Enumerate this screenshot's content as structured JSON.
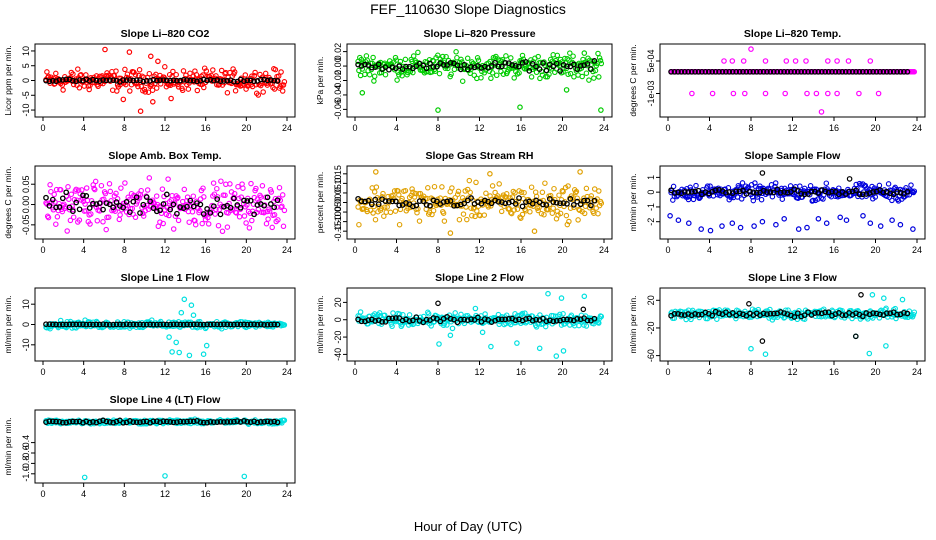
{
  "figure": {
    "title": "FEF_110630  Slope Diagnostics",
    "xlabel": "Hour of Day (UTC)"
  },
  "chart_data": [
    {
      "type": "scatter",
      "title": "Slope Li–820 CO2",
      "ylabel": "Licor ppm per min.",
      "xlim": [
        0,
        24
      ],
      "ylim": [
        -11,
        11
      ],
      "xticks": [
        "0",
        "4",
        "8",
        "12",
        "16",
        "20",
        "24"
      ],
      "yticks": [
        "-10",
        "-5",
        "0",
        "5",
        "10"
      ],
      "ytick_values": [
        -10,
        -5,
        0,
        5,
        10
      ],
      "series": [
        {
          "color": "#ff0000",
          "spread": 3.0,
          "extra_points": [
            [
              6.1,
              10.5
            ],
            [
              8.5,
              9.6
            ],
            [
              10.6,
              8.2
            ],
            [
              11.3,
              6.5
            ],
            [
              9.6,
              -10.4
            ],
            [
              10.8,
              -7.2
            ],
            [
              12.6,
              -6.1
            ],
            [
              7.9,
              -6.4
            ]
          ]
        },
        {
          "color": "#000000",
          "spread": 0.6,
          "extra_points": []
        }
      ]
    },
    {
      "type": "scatter",
      "title": "Slope Li–820 Pressure",
      "ylabel": "kPa per min.",
      "xlim": [
        0,
        24
      ],
      "ylim": [
        -0.065,
        0.025
      ],
      "xticks": [
        "0",
        "4",
        "8",
        "12",
        "16",
        "20",
        "24"
      ],
      "yticks": [
        "-0.06",
        "-0.04",
        "-0.02",
        "0.00",
        "0.02"
      ],
      "ytick_values": [
        -0.06,
        -0.04,
        -0.02,
        0.0,
        0.02
      ],
      "series": [
        {
          "color": "#00cc00",
          "spread": 0.014,
          "extra_points": [
            [
              8.0,
              -0.061
            ],
            [
              15.9,
              -0.057
            ],
            [
              23.7,
              -0.061
            ],
            [
              0.7,
              -0.037
            ],
            [
              20.4,
              -0.033
            ],
            [
              22.1,
              0.018
            ]
          ]
        },
        {
          "color": "#000000",
          "spread": 0.008,
          "extra_points": []
        }
      ]
    },
    {
      "type": "scatter",
      "title": "Slope Li–820 Temp.",
      "ylabel": "degrees C per min.",
      "xlim": [
        0,
        24
      ],
      "ylim": [
        -0.0019,
        0.0011
      ],
      "xticks": [
        "0",
        "4",
        "8",
        "12",
        "16",
        "20",
        "24"
      ],
      "yticks": [
        "-1e-03",
        "5e-04"
      ],
      "ytick_values": [
        -0.001,
        0.0005
      ],
      "series": [
        {
          "color": "#ff00ff",
          "spread": 0.0,
          "extra_points": [
            [
              8.0,
              0.00105
            ],
            [
              14.8,
              -0.00185
            ],
            [
              5.4,
              0.0005
            ],
            [
              6.2,
              0.0005
            ],
            [
              7.3,
              0.0005
            ],
            [
              9.4,
              0.0005
            ],
            [
              11.4,
              0.0005
            ],
            [
              12.3,
              0.0005
            ],
            [
              13.3,
              0.0005
            ],
            [
              15.4,
              0.0005
            ],
            [
              16.3,
              0.0005
            ],
            [
              17.4,
              0.0005
            ],
            [
              19.5,
              0.0005
            ],
            [
              2.3,
              -0.001
            ],
            [
              4.3,
              -0.001
            ],
            [
              6.3,
              -0.001
            ],
            [
              7.4,
              -0.001
            ],
            [
              9.4,
              -0.001
            ],
            [
              11.3,
              -0.001
            ],
            [
              13.4,
              -0.001
            ],
            [
              14.3,
              -0.001
            ],
            [
              15.4,
              -0.001
            ],
            [
              16.3,
              -0.001
            ],
            [
              18.4,
              -0.001
            ],
            [
              20.3,
              -0.001
            ]
          ]
        },
        {
          "color": "#000000",
          "spread": 0.0,
          "extra_points": []
        }
      ]
    },
    {
      "type": "scatter",
      "title": "Slope Amb. Box Temp.",
      "ylabel": "degrees C per min.",
      "xlim": [
        0,
        24
      ],
      "ylim": [
        -0.075,
        0.085
      ],
      "xticks": [
        "0",
        "4",
        "8",
        "12",
        "16",
        "20",
        "24"
      ],
      "yticks": [
        "-0.05",
        "0.00",
        "0.05"
      ],
      "ytick_values": [
        -0.05,
        0.0,
        0.05
      ],
      "series": [
        {
          "color": "#ff00ff",
          "spread": 0.045,
          "extra_points": []
        },
        {
          "color": "#000000",
          "spread": 0.035,
          "extra_points": []
        }
      ]
    },
    {
      "type": "scatter",
      "title": "Slope Gas Stream RH",
      "ylabel": "percent per min.",
      "xlim": [
        0,
        24
      ],
      "ylim": [
        -0.17,
        0.17
      ],
      "xticks": [
        "0",
        "4",
        "8",
        "12",
        "16",
        "20",
        "24"
      ],
      "yticks": [
        "-0.15",
        "-0.10",
        "-0.05",
        "0.00",
        "0.05",
        "0.10",
        "0.15"
      ],
      "ytick_values": [
        -0.15,
        -0.1,
        -0.05,
        0.0,
        0.05,
        0.1,
        0.15
      ],
      "series": [
        {
          "color": "#e0a000",
          "spread": 0.08,
          "extra_points": [
            [
              2.0,
              0.16
            ],
            [
              9.2,
              -0.16
            ],
            [
              21.7,
              0.16
            ],
            [
              13.0,
              0.15
            ],
            [
              17.3,
              -0.15
            ]
          ]
        },
        {
          "color": "#000000",
          "spread": 0.03,
          "extra_points": []
        }
      ]
    },
    {
      "type": "scatter",
      "title": "Slope Sample Flow",
      "ylabel": "ml/min per min.",
      "xlim": [
        0,
        24
      ],
      "ylim": [
        -2.9,
        1.5
      ],
      "xticks": [
        "0",
        "4",
        "8",
        "12",
        "16",
        "20",
        "24"
      ],
      "yticks": [
        "-2",
        "-1",
        "0",
        "1"
      ],
      "ytick_values": [
        -2,
        -1,
        0,
        1
      ],
      "series": [
        {
          "color": "#0000dd",
          "spread": 0.45,
          "extra_points": [
            [
              0.2,
              -1.6
            ],
            [
              1.0,
              -1.9
            ],
            [
              2.0,
              -2.1
            ],
            [
              3.2,
              -2.5
            ],
            [
              4.1,
              -2.6
            ],
            [
              5.2,
              -2.3
            ],
            [
              6.2,
              -2.1
            ],
            [
              7.0,
              -2.4
            ],
            [
              8.3,
              -2.3
            ],
            [
              9.1,
              -2.0
            ],
            [
              10.4,
              -2.2
            ],
            [
              11.2,
              -1.8
            ],
            [
              12.6,
              -2.5
            ],
            [
              13.4,
              -2.4
            ],
            [
              14.5,
              -1.8
            ],
            [
              15.3,
              -2.1
            ],
            [
              16.6,
              -1.7
            ],
            [
              17.2,
              -1.9
            ],
            [
              18.8,
              -1.6
            ],
            [
              19.5,
              -2.1
            ],
            [
              20.5,
              -2.3
            ],
            [
              21.6,
              -1.9
            ],
            [
              22.4,
              -2.2
            ],
            [
              23.6,
              -2.5
            ]
          ]
        },
        {
          "color": "#000000",
          "spread": 0.25,
          "extra_points": [
            [
              9.1,
              1.3
            ],
            [
              17.5,
              0.9
            ]
          ]
        }
      ]
    },
    {
      "type": "scatter",
      "title": "Slope Line 1 Flow",
      "ylabel": "ml/min per min.",
      "xlim": [
        0,
        24
      ],
      "ylim": [
        -16,
        16
      ],
      "xticks": [
        "0",
        "4",
        "8",
        "12",
        "16",
        "20",
        "24"
      ],
      "yticks": [
        "-10",
        "0",
        "10"
      ],
      "ytick_values": [
        -10,
        0,
        10
      ],
      "series": [
        {
          "color": "#00e0e0",
          "spread": 1.5,
          "extra_points": [
            [
              13.9,
              12.4
            ],
            [
              14.6,
              9.5
            ],
            [
              13.6,
              5.8
            ],
            [
              14.8,
              4.6
            ],
            [
              12.4,
              -6.2
            ],
            [
              13.1,
              -8.8
            ],
            [
              12.7,
              -13.5
            ],
            [
              13.4,
              -13.8
            ],
            [
              15.8,
              -14.6
            ],
            [
              16.1,
              -10.4
            ],
            [
              14.4,
              -15.2
            ]
          ]
        },
        {
          "color": "#000000",
          "spread": 0.2,
          "extra_points": []
        }
      ]
    },
    {
      "type": "scatter",
      "title": "Slope Line 2 Flow",
      "ylabel": "ml/min per min.",
      "xlim": [
        0,
        24
      ],
      "ylim": [
        -43,
        32
      ],
      "xticks": [
        "0",
        "4",
        "8",
        "12",
        "16",
        "20",
        "24"
      ],
      "yticks": [
        "-40",
        "-20",
        "0",
        "20"
      ],
      "ytick_values": [
        -40,
        -20,
        0,
        20
      ],
      "series": [
        {
          "color": "#00e0e0",
          "spread": 6.0,
          "extra_points": [
            [
              8.1,
              -28.0
            ],
            [
              9.2,
              -18.0
            ],
            [
              12.3,
              -14.5
            ],
            [
              13.1,
              -31.0
            ],
            [
              15.6,
              -27.0
            ],
            [
              17.8,
              -33.0
            ],
            [
              19.4,
              -42.0
            ],
            [
              20.1,
              -36.0
            ],
            [
              18.6,
              30.0
            ],
            [
              19.9,
              25.0
            ],
            [
              22.1,
              27.0
            ],
            [
              9.4,
              -10.0
            ],
            [
              11.6,
              13.0
            ]
          ]
        },
        {
          "color": "#000000",
          "spread": 4.0,
          "extra_points": [
            [
              8.0,
              19.0
            ],
            [
              22.0,
              12.0
            ]
          ]
        }
      ]
    },
    {
      "type": "scatter",
      "title": "Slope Line 3 Flow",
      "ylabel": "ml/min per min.",
      "xlim": [
        0,
        24
      ],
      "ylim": [
        -62,
        32
      ],
      "xticks": [
        "0",
        "4",
        "8",
        "12",
        "16",
        "20",
        "24"
      ],
      "yticks": [
        "-60",
        "-20",
        "20"
      ],
      "ytick_values": [
        -60,
        -20,
        20
      ],
      "series": [
        {
          "color": "#00e0e0",
          "spread": 6.0,
          "extra_points": [
            [
              8.0,
              -50.0
            ],
            [
              9.4,
              -58.0
            ],
            [
              18.1,
              -32.0
            ],
            [
              19.4,
              -57.0
            ],
            [
              21.0,
              -46.0
            ],
            [
              19.7,
              28.0
            ],
            [
              20.8,
              23.0
            ],
            [
              22.6,
              21.0
            ]
          ]
        },
        {
          "color": "#000000",
          "spread": 5.5,
          "extra_points": [
            [
              7.8,
              15.0
            ],
            [
              18.6,
              28.0
            ],
            [
              9.1,
              -39.0
            ],
            [
              18.1,
              -32.0
            ]
          ]
        }
      ]
    },
    {
      "type": "scatter",
      "title": "Slope Line 4 (LT) Flow",
      "ylabel": "ml/min per min.",
      "xlim": [
        0,
        24
      ],
      "ylim": [
        -1.1,
        0.15
      ],
      "xticks": [
        "0",
        "4",
        "8",
        "12",
        "16",
        "20",
        "24"
      ],
      "yticks": [
        "-1.0",
        "-0.8",
        "-0.6",
        "-0.4"
      ],
      "ytick_values": [
        -1.0,
        -0.8,
        -0.6,
        -0.4
      ],
      "series": [
        {
          "color": "#00e0e0",
          "spread": 0.035,
          "extra_points": [
            [
              4.1,
              -1.07
            ],
            [
              12.0,
              -1.04
            ],
            [
              19.8,
              -1.05
            ]
          ]
        },
        {
          "color": "#000000",
          "spread": 0.03,
          "extra_points": []
        }
      ]
    }
  ]
}
